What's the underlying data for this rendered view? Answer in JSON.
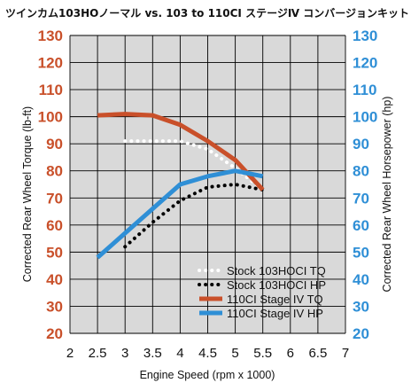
{
  "chart_data": {
    "type": "line",
    "title": "ツインカム103HOノーマル vs. 103 to 110CI ステージⅣ コンバージョンキット",
    "xlabel": "Engine Speed (rpm x 1000)",
    "ylabel_left": "Corrected Rear Wheel Torque (lb-ft)",
    "ylabel_right": "Corrected Rear Wheel Horsepower (hp)",
    "xlim": [
      2,
      7
    ],
    "ylim": [
      20,
      130
    ],
    "x_ticks": [
      "2",
      "2.5",
      "3",
      "3.5",
      "4",
      "4.5",
      "5",
      "5.5",
      "6",
      "6.5",
      "7"
    ],
    "y_ticks": [
      "20",
      "30",
      "40",
      "50",
      "60",
      "70",
      "80",
      "90",
      "100",
      "110",
      "120",
      "130"
    ],
    "grid": true,
    "legend_position": "bottom-right",
    "colors": {
      "background": "#d9d9d9",
      "grid": "#000000",
      "left_axis": "#c9502a",
      "right_axis": "#2f8fd6"
    },
    "series": [
      {
        "name": "Stock 103HOCI TQ",
        "color": "#ffffff",
        "style": "dotted",
        "x": [
          3.0,
          3.5,
          4.0,
          4.5,
          5.0,
          5.5
        ],
        "y": [
          91,
          91,
          91,
          88,
          81,
          73
        ]
      },
      {
        "name": "Stock 103HOCI HP",
        "color": "#000000",
        "style": "dotted",
        "x": [
          3.0,
          3.5,
          4.0,
          4.5,
          5.0,
          5.5
        ],
        "y": [
          52,
          61,
          69,
          74,
          75,
          73
        ]
      },
      {
        "name": "110CI Stage IV TQ",
        "color": "#c9502a",
        "style": "solid",
        "x": [
          2.5,
          3.0,
          3.5,
          4.0,
          4.5,
          5.0,
          5.5
        ],
        "y": [
          100.5,
          101,
          100.5,
          97,
          91,
          84,
          73
        ]
      },
      {
        "name": "110CI Stage IV HP",
        "color": "#2f8fd6",
        "style": "solid",
        "x": [
          2.5,
          3.0,
          3.5,
          4.0,
          4.5,
          5.0,
          5.5
        ],
        "y": [
          48,
          57,
          66,
          75,
          78,
          80,
          78
        ]
      }
    ]
  }
}
